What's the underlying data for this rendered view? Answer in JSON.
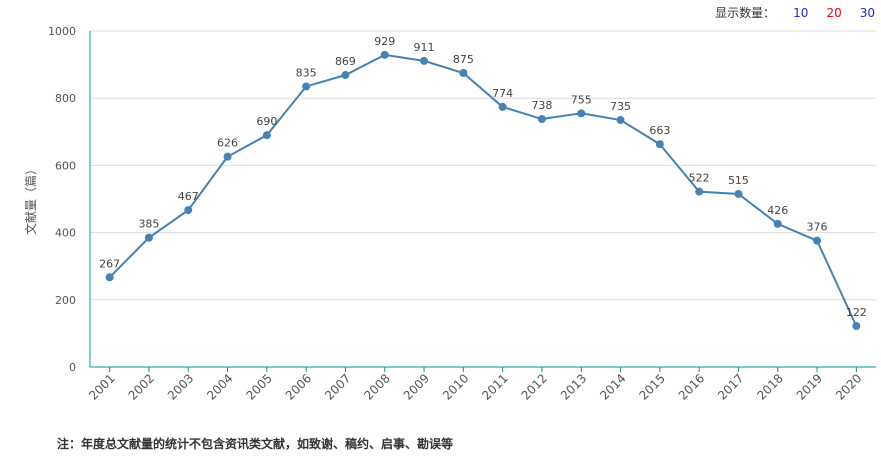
{
  "display_count": {
    "label": "显示数量：",
    "options": [
      {
        "label": "10",
        "color": "#1f2dc8"
      },
      {
        "label": "20",
        "color": "#e60012"
      },
      {
        "label": "30",
        "color": "#1f2dc8"
      }
    ]
  },
  "footnote": "注：年度总文献量的统计不包含资讯类文献，如致谢、稿约、启事、勘误等",
  "chart_data": {
    "type": "line",
    "ylabel": "文献量（篇）",
    "ylim": [
      0,
      1000
    ],
    "yticks": [
      "0",
      "200",
      "400",
      "600",
      "800",
      "1000"
    ],
    "grid": true,
    "line_color": "#4682b4",
    "axis_color": "#009999",
    "categories": [
      "2001",
      "2002",
      "2003",
      "2004",
      "2005",
      "2006",
      "2007",
      "2008",
      "2009",
      "2010",
      "2011",
      "2012",
      "2013",
      "2014",
      "2015",
      "2016",
      "2017",
      "2018",
      "2019",
      "2020"
    ],
    "values": [
      267,
      385,
      467,
      626,
      690,
      835,
      869,
      929,
      911,
      875,
      774,
      738,
      755,
      735,
      663,
      522,
      515,
      426,
      376,
      122
    ]
  }
}
